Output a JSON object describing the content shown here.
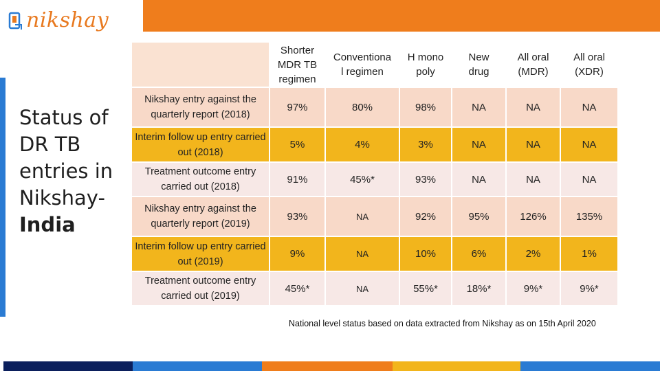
{
  "brand": {
    "logo_text": "nikshay",
    "orange": "#ef7d1c",
    "blue": "#2a7bd3"
  },
  "side_title": {
    "line1": "Status of",
    "line2": "DR TB",
    "line3": "entries  in",
    "line4": "Nikshay-",
    "line5": "India"
  },
  "table": {
    "columns": [
      "Shorter MDR TB regimen",
      "Conventional regimen",
      "H mono poly",
      "New drug",
      "All oral (MDR)",
      "All oral (XDR)"
    ],
    "rows": [
      {
        "label": "Nikshay entry against the quarterly report (2018)",
        "values": [
          "97%",
          "80%",
          "98%",
          "NA",
          "NA",
          "NA"
        ]
      },
      {
        "label": "Interim follow up entry carried out  (2018)",
        "values": [
          "5%",
          "4%",
          "3%",
          "NA",
          "NA",
          "NA"
        ]
      },
      {
        "label": "Treatment outcome entry carried out (2018)",
        "values": [
          "91%",
          "45%*",
          "93%",
          "NA",
          "NA",
          "NA"
        ]
      },
      {
        "label": "Nikshay entry against the quarterly report (2019)",
        "values": [
          "93%",
          "NA",
          "92%",
          "95%",
          "126%",
          "135%"
        ]
      },
      {
        "label": "Interim follow up entry carried out   (2019)",
        "values": [
          "9%",
          "NA",
          "10%",
          "6%",
          "2%",
          "1%"
        ]
      },
      {
        "label": "Treatment outcome entry carried out (2019)",
        "values": [
          "45%*",
          "NA",
          "55%*",
          "18%*",
          "9%*",
          "9%*"
        ]
      }
    ]
  },
  "footnote": "National level status based on data extracted from Nikshay  as on 15th April 2020"
}
